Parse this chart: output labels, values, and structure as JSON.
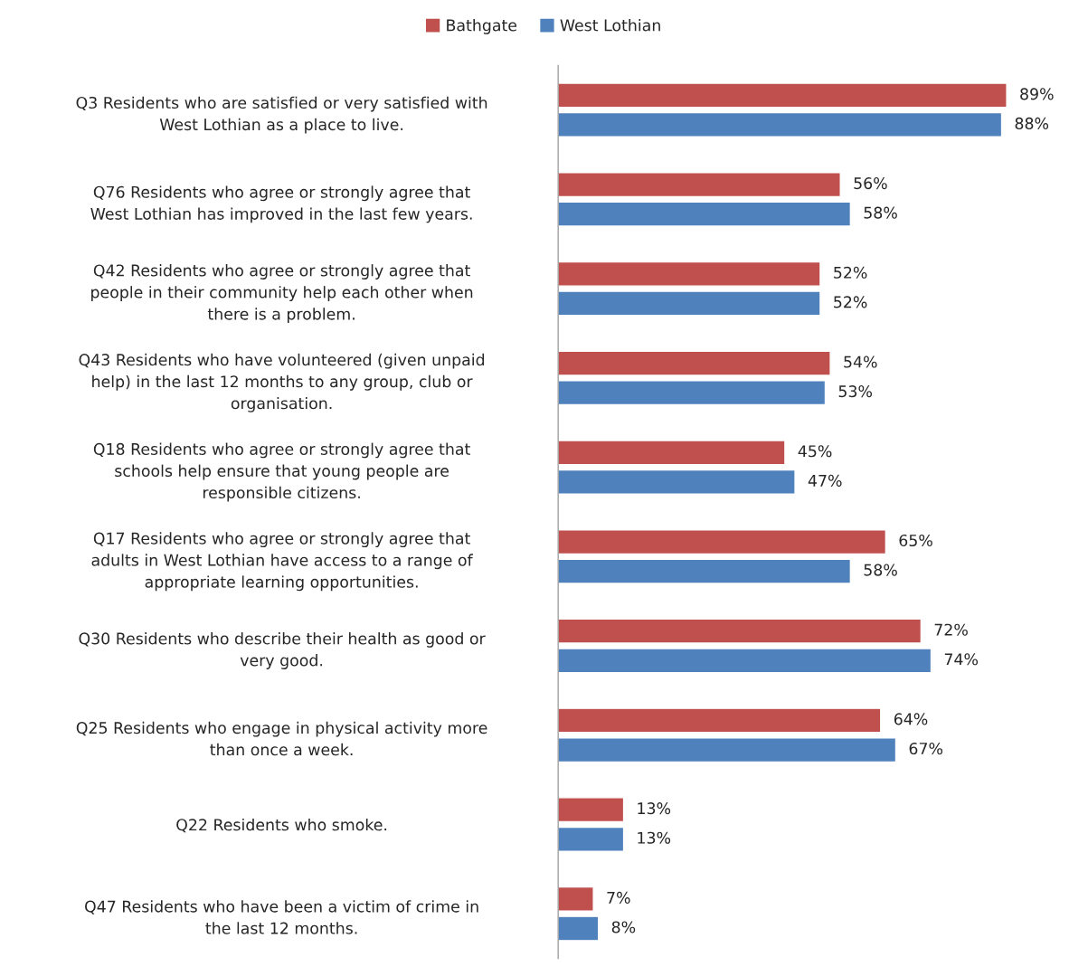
{
  "chart_data": {
    "type": "bar",
    "orientation": "horizontal",
    "legend": "top",
    "categories": [
      "Q3 Residents who are satisfied or very satisfied with\nWest Lothian as a place to live.",
      "Q76 Residents who agree or strongly agree that\nWest Lothian has improved in the last few years.",
      "Q42 Residents who agree or strongly agree that\npeople in their community help each other when\nthere is a problem.",
      "Q43 Residents who have volunteered (given unpaid\nhelp) in the last 12 months to any group, club or\norganisation.",
      "Q18 Residents who agree or strongly agree that\nschools help ensure that young people are\nresponsible citizens.",
      "Q17 Residents who agree or strongly agree that\nadults in West Lothian have access to a range of\nappropriate learning opportunities.",
      "Q30 Residents who describe their health as good or\nvery good.",
      "Q25 Residents who engage in physical activity more\nthan once a week.",
      "Q22 Residents who smoke.",
      "Q47 Residents who have been a victim of crime in\nthe last 12 months."
    ],
    "series": [
      {
        "name": "Bathgate",
        "color": "#c0504d",
        "values": [
          89,
          56,
          52,
          54,
          45,
          65,
          72,
          64,
          13,
          7
        ],
        "value_labels": [
          "89%",
          "56%",
          "52%",
          "54%",
          "45%",
          "65%",
          "72%",
          "64%",
          "13%",
          "7%"
        ]
      },
      {
        "name": "West Lothian",
        "color": "#4f81bd",
        "values": [
          88,
          58,
          52,
          53,
          47,
          58,
          74,
          67,
          13,
          8
        ],
        "value_labels": [
          "88%",
          "58%",
          "52%",
          "53%",
          "47%",
          "58%",
          "74%",
          "67%",
          "13%",
          "8%"
        ]
      }
    ]
  }
}
